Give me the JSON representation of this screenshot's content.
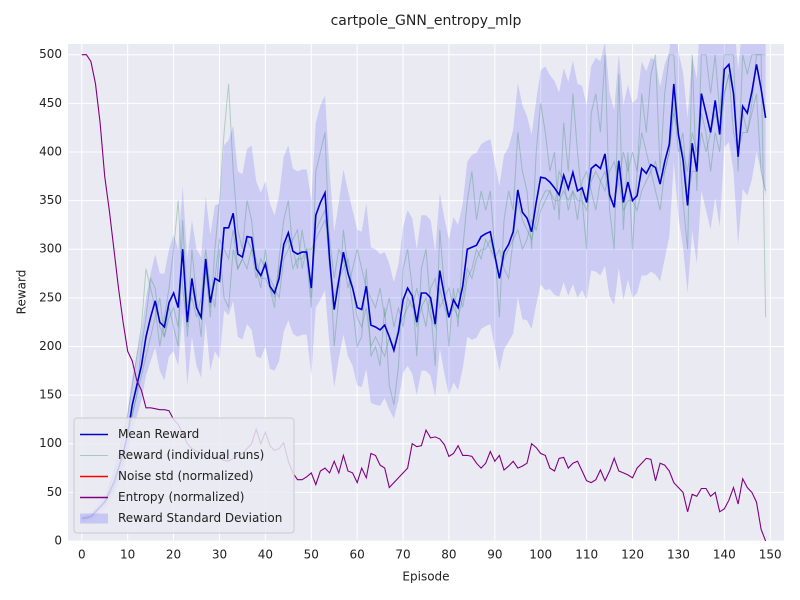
{
  "chart_data": {
    "type": "line",
    "title": "cartpole_GNN_entropy_mlp",
    "x_label": "Episode",
    "y_label": "Reward",
    "xlim": [
      -3,
      153
    ],
    "ylim": [
      0,
      511
    ],
    "xticks": [
      0,
      10,
      20,
      30,
      40,
      50,
      60,
      70,
      80,
      90,
      100,
      110,
      120,
      130,
      140,
      150
    ],
    "yticks": [
      0,
      50,
      100,
      150,
      200,
      250,
      300,
      350,
      400,
      450,
      500
    ],
    "grid": true,
    "legend": "lower left",
    "x": [
      0,
      1,
      2,
      3,
      4,
      5,
      6,
      7,
      8,
      9,
      10,
      11,
      12,
      13,
      14,
      15,
      16,
      17,
      18,
      19,
      20,
      21,
      22,
      23,
      24,
      25,
      26,
      27,
      28,
      29,
      30,
      31,
      32,
      33,
      34,
      35,
      36,
      37,
      38,
      39,
      40,
      41,
      42,
      43,
      44,
      45,
      46,
      47,
      48,
      49,
      50,
      51,
      52,
      53,
      54,
      55,
      56,
      57,
      58,
      59,
      60,
      61,
      62,
      63,
      64,
      65,
      66,
      67,
      68,
      69,
      70,
      71,
      72,
      73,
      74,
      75,
      76,
      77,
      78,
      79,
      80,
      81,
      82,
      83,
      84,
      85,
      86,
      87,
      88,
      89,
      90,
      91,
      92,
      93,
      94,
      95,
      96,
      97,
      98,
      99,
      100,
      101,
      102,
      103,
      104,
      105,
      106,
      107,
      108,
      109,
      110,
      111,
      112,
      113,
      114,
      115,
      116,
      117,
      118,
      119,
      120,
      121,
      122,
      123,
      124,
      125,
      126,
      127,
      128,
      129,
      130,
      131,
      132,
      133,
      134,
      135,
      136,
      137,
      138,
      139,
      140,
      141,
      142,
      143,
      144,
      145,
      146,
      147,
      148,
      149
    ],
    "series": [
      {
        "name": "Mean Reward",
        "color": "#0000cc",
        "style": "line",
        "values": [
          23,
          24,
          25,
          30,
          35,
          40,
          50,
          60,
          75,
          90,
          110,
          140,
          160,
          180,
          210,
          230,
          247,
          225,
          220,
          245,
          255,
          240,
          300,
          225,
          270,
          240,
          230,
          290,
          245,
          270,
          267,
          322,
          322,
          337,
          295,
          292,
          313,
          312,
          280,
          273,
          285,
          262,
          255,
          270,
          305,
          317,
          298,
          295,
          297,
          297,
          260,
          335,
          348,
          358,
          290,
          238,
          268,
          297,
          275,
          260,
          240,
          238,
          262,
          222,
          220,
          217,
          222,
          210,
          196,
          215,
          248,
          260,
          252,
          225,
          255,
          255,
          250,
          223,
          278,
          252,
          230,
          248,
          240,
          262,
          300,
          302,
          304,
          313,
          316,
          318,
          294,
          270,
          297,
          305,
          318,
          361,
          338,
          332,
          318,
          348,
          374,
          373,
          369,
          363,
          356,
          376,
          362,
          379,
          360,
          363,
          348,
          383,
          387,
          383,
          398,
          356,
          343,
          391,
          348,
          369,
          350,
          355,
          383,
          378,
          387,
          384,
          367,
          390,
          408,
          470,
          418,
          392,
          345,
          409,
          380,
          460,
          440,
          420,
          453,
          418,
          485,
          490,
          460,
          395,
          447,
          440,
          462,
          490,
          465,
          435
        ]
      },
      {
        "name": "Reward (individual runs)",
        "color": "#2e8b57",
        "style": "runs",
        "runs": [
          [
            20,
            22,
            25,
            28,
            35,
            40,
            55,
            70,
            90,
            110,
            130,
            160,
            190,
            220,
            280,
            260,
            240,
            200,
            230,
            260,
            300,
            350,
            260,
            220,
            300,
            250,
            210,
            280,
            230,
            300,
            350,
            420,
            470,
            380,
            320,
            300,
            350,
            330,
            280,
            260,
            300,
            260,
            240,
            290,
            330,
            350,
            300,
            280,
            320,
            290,
            240,
            380,
            400,
            420,
            300,
            200,
            250,
            320,
            280,
            240,
            200,
            210,
            280,
            190,
            200,
            180,
            240,
            160,
            140,
            180,
            280,
            300,
            260,
            190,
            280,
            300,
            240,
            180,
            320,
            260,
            200,
            260,
            220,
            300,
            350,
            380,
            330,
            360,
            340,
            360,
            300,
            230,
            330,
            360,
            340,
            420,
            380,
            360,
            300,
            400,
            450,
            420,
            380,
            400,
            330,
            430,
            380,
            460,
            400,
            350,
            300,
            440,
            460,
            420,
            500,
            340,
            300,
            480,
            320,
            400,
            300,
            380,
            460,
            420,
            480,
            500,
            380,
            460,
            500,
            500,
            420,
            350,
            300,
            500,
            360,
            500,
            500,
            460,
            500,
            440,
            500,
            500,
            500,
            380,
            500,
            480,
            500,
            500,
            500,
            500
          ],
          [
            25,
            25,
            26,
            30,
            36,
            42,
            48,
            55,
            65,
            80,
            100,
            130,
            150,
            170,
            190,
            210,
            230,
            250,
            210,
            240,
            220,
            200,
            330,
            240,
            250,
            230,
            250,
            300,
            260,
            240,
            300,
            250,
            240,
            300,
            280,
            290,
            280,
            300,
            270,
            290,
            280,
            270,
            260,
            250,
            290,
            300,
            310,
            320,
            280,
            300,
            300,
            310,
            320,
            330,
            310,
            270,
            300,
            290,
            260,
            280,
            300,
            280,
            260,
            250,
            240,
            260,
            230,
            250,
            220,
            240,
            220,
            250,
            240,
            260,
            240,
            220,
            260,
            270,
            240,
            250,
            260,
            240,
            260,
            240,
            270,
            280,
            300,
            290,
            310,
            300,
            290,
            300,
            280,
            270,
            310,
            320,
            300,
            310,
            330,
            320,
            340,
            350,
            360,
            340,
            380,
            370,
            340,
            360,
            330,
            370,
            380,
            360,
            340,
            370,
            360,
            380,
            390,
            370,
            400,
            380,
            400,
            380,
            420,
            400,
            380,
            360,
            340,
            380,
            400,
            440,
            420,
            400,
            380,
            420,
            400,
            440,
            420,
            380,
            420,
            400,
            460,
            480,
            420,
            400,
            440,
            420,
            440,
            460,
            380,
            360
          ],
          [
            24,
            26,
            24,
            32,
            34,
            38,
            46,
            55,
            70,
            85,
            110,
            130,
            150,
            200,
            230,
            270,
            260,
            220,
            210,
            230,
            240,
            220,
            300,
            210,
            260,
            240,
            230,
            280,
            240,
            270,
            310,
            300,
            290,
            320,
            280,
            290,
            310,
            300,
            290,
            270,
            270,
            260,
            250,
            280,
            300,
            310,
            280,
            290,
            290,
            300,
            250,
            320,
            330,
            340,
            280,
            250,
            270,
            280,
            290,
            260,
            230,
            220,
            240,
            200,
            210,
            200,
            190,
            210,
            200,
            220,
            230,
            240,
            250,
            220,
            240,
            250,
            230,
            220,
            260,
            240,
            230,
            240,
            230,
            250,
            280,
            270,
            290,
            300,
            300,
            310,
            290,
            270,
            290,
            300,
            310,
            350,
            330,
            320,
            310,
            330,
            350,
            360,
            360,
            350,
            350,
            360,
            350,
            360,
            350,
            350,
            340,
            370,
            380,
            370,
            380,
            350,
            350,
            370,
            340,
            350,
            350,
            340,
            360,
            370,
            380,
            390,
            370,
            380,
            400,
            450,
            400,
            420,
            350,
            380,
            380,
            420,
            400,
            420,
            440,
            420,
            460,
            480,
            460,
            400,
            420,
            420,
            450,
            500,
            500,
            230
          ]
        ]
      },
      {
        "name": "Noise std (normalized)",
        "color": "#ff0000",
        "style": "line",
        "values": [
          null,
          null,
          null,
          null,
          null,
          null,
          null,
          null,
          null,
          null,
          null,
          null,
          null,
          null,
          null,
          null,
          null,
          null,
          null,
          null,
          null,
          null,
          null,
          null,
          null,
          null,
          null,
          null,
          null,
          null,
          null,
          null,
          null,
          null,
          null,
          null,
          null,
          null,
          null,
          null,
          null,
          null,
          null,
          null,
          null,
          null,
          null,
          null,
          null,
          null,
          null,
          null,
          null,
          null,
          null,
          null,
          null,
          null,
          null,
          null,
          null,
          null,
          null,
          null,
          null,
          null,
          null,
          null,
          null,
          null,
          null,
          null,
          null,
          null,
          null,
          null,
          null,
          null,
          null,
          null,
          null,
          null,
          null,
          null,
          null,
          null,
          null,
          null,
          null,
          null,
          null,
          null,
          null,
          null,
          null,
          null,
          null,
          null,
          null,
          null,
          null,
          null,
          null,
          null,
          null,
          null,
          null,
          null,
          null,
          null,
          null,
          null,
          null,
          null,
          null,
          null,
          null,
          null,
          null,
          null,
          null,
          null,
          null,
          null,
          null,
          null,
          null,
          null,
          null,
          null,
          null,
          null,
          null,
          null,
          null,
          null,
          null,
          null,
          null,
          null,
          null,
          null,
          null,
          null,
          null,
          null,
          null,
          null,
          null,
          null
        ]
      },
      {
        "name": "Entropy (normalized)",
        "color": "#800080",
        "style": "line",
        "values": [
          500,
          500,
          493,
          470,
          430,
          375,
          340,
          300,
          260,
          225,
          195,
          185,
          165,
          155,
          137,
          137,
          136,
          135,
          135,
          134,
          125,
          120,
          110,
          100,
          95,
          92,
          90,
          88,
          87,
          85,
          85,
          83,
          82,
          85,
          88,
          90,
          95,
          100,
          115,
          100,
          112,
          98,
          93,
          95,
          101,
          82,
          70,
          63,
          63,
          66,
          70,
          58,
          72,
          75,
          70,
          82,
          70,
          88,
          72,
          70,
          60,
          75,
          65,
          90,
          88,
          78,
          75,
          55,
          60,
          65,
          70,
          75,
          100,
          97,
          98,
          114,
          106,
          107,
          105,
          99,
          87,
          90,
          98,
          88,
          88,
          87,
          80,
          75,
          80,
          92,
          82,
          88,
          73,
          77,
          82,
          75,
          77,
          80,
          100,
          96,
          90,
          88,
          75,
          72,
          85,
          86,
          75,
          80,
          82,
          72,
          62,
          60,
          63,
          73,
          62,
          72,
          85,
          72,
          70,
          68,
          65,
          75,
          80,
          85,
          84,
          62,
          80,
          78,
          72,
          60,
          55,
          50,
          30,
          48,
          46,
          54,
          54,
          46,
          50,
          30,
          33,
          42,
          55,
          38,
          64,
          55,
          50,
          40,
          12,
          0
        ]
      },
      {
        "name": "Reward Standard Deviation",
        "color": "#0000ff",
        "style": "band",
        "std": [
          3,
          3,
          4,
          5,
          6,
          8,
          10,
          12,
          15,
          18,
          22,
          28,
          32,
          35,
          40,
          45,
          48,
          50,
          55,
          55,
          60,
          60,
          65,
          65,
          60,
          60,
          62,
          65,
          70,
          75,
          80,
          85,
          90,
          90,
          85,
          85,
          90,
          95,
          90,
          85,
          85,
          85,
          80,
          85,
          90,
          90,
          85,
          85,
          85,
          85,
          90,
          95,
          100,
          100,
          90,
          80,
          80,
          85,
          85,
          80,
          80,
          80,
          85,
          80,
          80,
          78,
          75,
          75,
          70,
          70,
          75,
          80,
          80,
          75,
          80,
          80,
          80,
          75,
          80,
          80,
          80,
          85,
          85,
          85,
          90,
          95,
          95,
          95,
          95,
          95,
          95,
          95,
          100,
          100,
          105,
          110,
          110,
          105,
          100,
          105,
          110,
          115,
          110,
          110,
          105,
          110,
          110,
          115,
          110,
          105,
          100,
          105,
          110,
          110,
          115,
          105,
          100,
          110,
          100,
          100,
          100,
          100,
          110,
          105,
          110,
          110,
          100,
          100,
          95,
          80,
          85,
          90,
          90,
          90,
          95,
          100,
          100,
          100,
          100,
          95,
          80,
          80,
          80,
          90,
          85,
          85,
          90,
          90,
          85,
          80
        ]
      }
    ]
  }
}
